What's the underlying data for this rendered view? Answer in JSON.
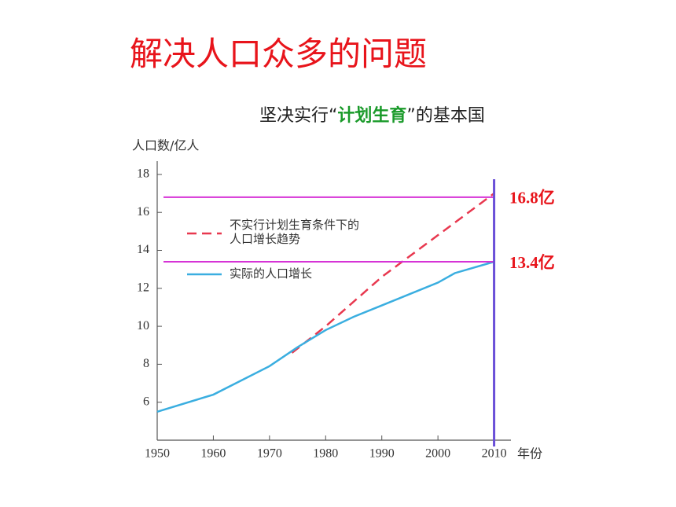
{
  "header": {
    "title": "解决人口众多的问题",
    "subtitle": {
      "prefix": "坚决实行“",
      "highlight": "计划生育",
      "suffix": "”的基本国"
    }
  },
  "chart_data": {
    "type": "line",
    "ylabel": "人口数/亿人",
    "xlabel": "年份",
    "xlim": [
      1950,
      2013
    ],
    "xticks": [
      1950,
      1960,
      1970,
      1980,
      1990,
      2000,
      2010
    ],
    "ylim": [
      4,
      18.7
    ],
    "yticks": [
      6,
      8,
      10,
      12,
      14,
      16,
      18
    ],
    "series": [
      {
        "name": "不实行计划生育条件下的人口增长趋势",
        "color": "#e8384f",
        "dashed": true,
        "x": [
          1974,
          1980,
          1990,
          2000,
          2010
        ],
        "values": [
          8.6,
          10.0,
          12.6,
          14.8,
          17.0
        ]
      },
      {
        "name": "实际的人口增长",
        "color": "#3aaee0",
        "dashed": false,
        "x": [
          1950,
          1960,
          1970,
          1975,
          1980,
          1985,
          1990,
          2000,
          2003,
          2010
        ],
        "values": [
          5.5,
          6.4,
          7.9,
          8.9,
          9.8,
          10.5,
          11.1,
          12.3,
          12.8,
          13.4
        ]
      }
    ],
    "reference_lines": [
      {
        "value": 16.8,
        "label": "16.8亿",
        "color": "#d633d6"
      },
      {
        "value": 13.4,
        "label": "13.4亿",
        "color": "#d633d6"
      }
    ],
    "vline": {
      "value": 2010,
      "color": "#6a4fd8"
    }
  }
}
